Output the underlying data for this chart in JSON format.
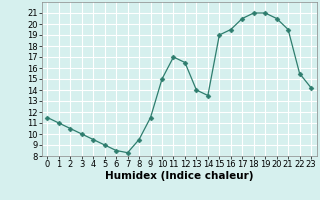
{
  "x": [
    0,
    1,
    2,
    3,
    4,
    5,
    6,
    7,
    8,
    9,
    10,
    11,
    12,
    13,
    14,
    15,
    16,
    17,
    18,
    19,
    20,
    21,
    22,
    23
  ],
  "y": [
    11.5,
    11.0,
    10.5,
    10.0,
    9.5,
    9.0,
    8.5,
    8.3,
    9.5,
    11.5,
    15.0,
    17.0,
    16.5,
    14.0,
    13.5,
    19.0,
    19.5,
    20.5,
    21.0,
    21.0,
    20.5,
    19.5,
    15.5,
    14.2
  ],
  "xlabel": "Humidex (Indice chaleur)",
  "ylim": [
    8,
    22
  ],
  "xlim": [
    -0.5,
    23.5
  ],
  "yticks": [
    8,
    9,
    10,
    11,
    12,
    13,
    14,
    15,
    16,
    17,
    18,
    19,
    20,
    21
  ],
  "xticks": [
    0,
    1,
    2,
    3,
    4,
    5,
    6,
    7,
    8,
    9,
    10,
    11,
    12,
    13,
    14,
    15,
    16,
    17,
    18,
    19,
    20,
    21,
    22,
    23
  ],
  "line_color": "#2e7d6e",
  "marker": "D",
  "marker_size": 2.5,
  "bg_color": "#d6f0ee",
  "grid_color": "#ffffff",
  "label_fontsize": 7.5,
  "tick_fontsize": 6.0
}
